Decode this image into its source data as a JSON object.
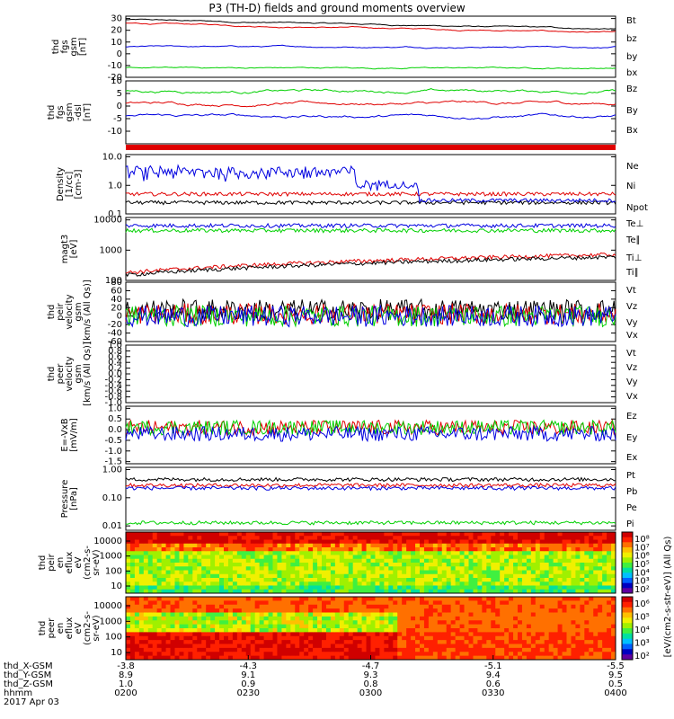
{
  "title": "P3 (TH-D) fields and ground moments overview",
  "colors": {
    "black": "#000000",
    "red": "#e00000",
    "green": "#00d000",
    "blue": "#0000e0"
  },
  "chart_data": [
    {
      "type": "line",
      "name": "fgs_gsm",
      "ylabel": [
        "thd",
        "fgs",
        "gsm",
        "[nT]"
      ],
      "ylim": [
        -20,
        32
      ],
      "ticks": [
        "30",
        "20",
        "10",
        "0",
        "-10",
        "-20"
      ],
      "series": [
        {
          "name": "Bt",
          "color": "black",
          "level": 29
        },
        {
          "name": "bz",
          "color": "red",
          "level": 26
        },
        {
          "name": "by",
          "color": "blue",
          "level": 6
        },
        {
          "name": "bx",
          "color": "green",
          "level": -12
        }
      ]
    },
    {
      "type": "line",
      "name": "fgs_gsm_dsl",
      "ylabel": [
        "thd",
        "fgs",
        "gsm",
        "-dsl",
        "[nT]"
      ],
      "ylim": [
        -15,
        10
      ],
      "ticks": [
        "10",
        "5",
        "0",
        "-5",
        "-10"
      ],
      "series": [
        {
          "name": "Bz",
          "color": "red",
          "level": 1
        },
        {
          "name": "By",
          "color": "green",
          "level": 6
        },
        {
          "name": "Bx",
          "color": "blue",
          "level": -4
        }
      ]
    },
    {
      "type": "line",
      "name": "density",
      "ylabel": [
        "Density",
        "[1/cc]",
        "[cm-3]"
      ],
      "scale": "log",
      "ylim": [
        0.1,
        12
      ],
      "ticks": [
        "10.0",
        "1.0",
        "0.1"
      ],
      "series": [
        {
          "name": "Ne",
          "color": "red",
          "level": 0.5
        },
        {
          "name": "Ni",
          "color": "black",
          "level": 0.25
        },
        {
          "name": "Npot",
          "color": "blue",
          "level": 3
        }
      ]
    },
    {
      "type": "line",
      "name": "magt3",
      "ylabel": [
        "magt3",
        "[eV]"
      ],
      "scale": "log",
      "ylim": [
        100,
        12000
      ],
      "ticks": [
        "10000",
        "1000",
        "100"
      ],
      "series": [
        {
          "name": "Te⊥",
          "color": "red",
          "level": 180
        },
        {
          "name": "Te∥",
          "color": "black",
          "level": 150
        },
        {
          "name": "Ti⊥",
          "color": "blue",
          "level": 6500
        },
        {
          "name": "Ti∥",
          "color": "green",
          "level": 4500
        }
      ]
    },
    {
      "type": "line",
      "name": "peir_velocity",
      "ylabel": [
        "thd",
        "peir",
        "velocity",
        "gsm",
        "[km/s (All Qs)]"
      ],
      "ylim": [
        -60,
        80
      ],
      "ticks": [
        "80",
        "60",
        "40",
        "20",
        "0",
        "-20",
        "-40",
        "-60"
      ],
      "series": [
        {
          "name": "Vt",
          "color": "black",
          "level": 15
        },
        {
          "name": "Vz",
          "color": "red",
          "level": 5
        },
        {
          "name": "Vy",
          "color": "green",
          "level": 0
        },
        {
          "name": "Vx",
          "color": "blue",
          "level": 0
        }
      ]
    },
    {
      "type": "line",
      "name": "peer_velocity",
      "ylabel": [
        "thd",
        "peer",
        "velocity",
        "gsm",
        "[km/s (All Qs)]"
      ],
      "ylim": [
        -1,
        1
      ],
      "ticks": [
        "1.0",
        "0.8",
        "0.6",
        "0.4",
        "0.2",
        "0.0",
        "-0.2",
        "-0.4",
        "-0.6",
        "-0.8",
        "-1.0"
      ],
      "series": [
        {
          "name": "Vt",
          "color": "black"
        },
        {
          "name": "Vz",
          "color": "red"
        },
        {
          "name": "Vy",
          "color": "green"
        },
        {
          "name": "Vx",
          "color": "blue"
        }
      ]
    },
    {
      "type": "line",
      "name": "efield",
      "ylabel": [
        "E=-VxB",
        "[mV/m]"
      ],
      "ylim": [
        -1.6,
        1.1
      ],
      "ticks": [
        "1.0",
        "0.5",
        "0.0",
        "-0.5",
        "-1.0",
        "-1.5"
      ],
      "series": [
        {
          "name": "Ez",
          "color": "red",
          "level": 0.1
        },
        {
          "name": "Ey",
          "color": "green",
          "level": 0.1
        },
        {
          "name": "Ex",
          "color": "blue",
          "level": -0.2
        }
      ]
    },
    {
      "type": "line",
      "name": "pressure",
      "ylabel": [
        "Pressure",
        "[nPa]"
      ],
      "scale": "log",
      "ylim": [
        0.007,
        1.2
      ],
      "ticks": [
        "1.00",
        "0.10",
        "0.01"
      ],
      "series": [
        {
          "name": "Pt",
          "color": "black",
          "level": 0.45
        },
        {
          "name": "Pb",
          "color": "red",
          "level": 0.28
        },
        {
          "name": "Pe",
          "color": "green",
          "level": 0.013
        },
        {
          "name": "Pi",
          "color": "blue",
          "level": 0.22
        }
      ]
    },
    {
      "type": "heatmap",
      "name": "peir_spectrogram",
      "ylabel": [
        "thd",
        "peir",
        "en",
        "eflux",
        "eV",
        "(cm2-s-",
        "sr-eV)"
      ],
      "ticks": [
        "10000",
        "1000",
        "100",
        "10"
      ]
    },
    {
      "type": "heatmap",
      "name": "peer_spectrogram",
      "ylabel": [
        "thd",
        "peer",
        "en",
        "eflux",
        "eV",
        "(cm2-s-",
        "sr-eV)"
      ],
      "ticks": [
        "10000",
        "1000",
        "100",
        "10"
      ]
    }
  ],
  "colorbar": {
    "label": "[eV/(cm2-s-str-eV)] (All Qs)",
    "top_ticks": [
      "10⁸",
      "10⁷",
      "10⁶",
      "10⁵",
      "10⁴",
      "10³",
      "10²"
    ],
    "bottom_ticks": [
      "10⁶",
      "10⁵",
      "10⁴",
      "10³",
      "10²"
    ]
  },
  "xaxis": {
    "rows": [
      {
        "label": "thd_X-GSM",
        "values": [
          "-3.8",
          "-4.3",
          "-4.7",
          "-5.1",
          "-5.5"
        ]
      },
      {
        "label": "thd_Y-GSM",
        "values": [
          "8.9",
          "9.1",
          "9.3",
          "9.4",
          "9.5"
        ]
      },
      {
        "label": "thd_Z-GSM",
        "values": [
          "1.0",
          "0.9",
          "0.8",
          "0.6",
          "0.5"
        ]
      },
      {
        "label": "hhmm",
        "values": [
          "0200",
          "0230",
          "0300",
          "0330",
          "0400"
        ]
      }
    ],
    "date": "2017 Apr 03"
  }
}
